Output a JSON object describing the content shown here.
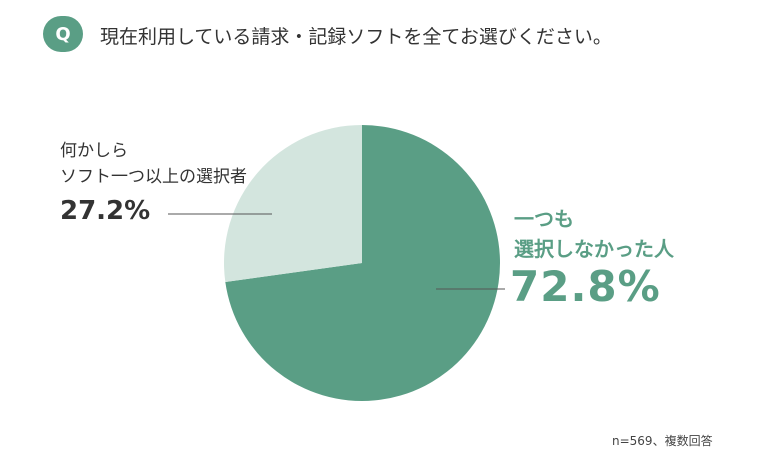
{
  "badge": "Q",
  "note": "n=569、複数回答",
  "chart_data": {
    "type": "pie",
    "title": "現在利用している請求・記録ソフトを全てお選びください。",
    "categories": [
      "一つも\n選択しなかった人",
      "何かしら\nソフト一つ以上の選択者"
    ],
    "values": [
      72.8,
      27.2
    ],
    "value_labels": [
      "72.8%",
      "27.2%"
    ],
    "colors": [
      "#5a9e85",
      "#d3e5de"
    ]
  }
}
